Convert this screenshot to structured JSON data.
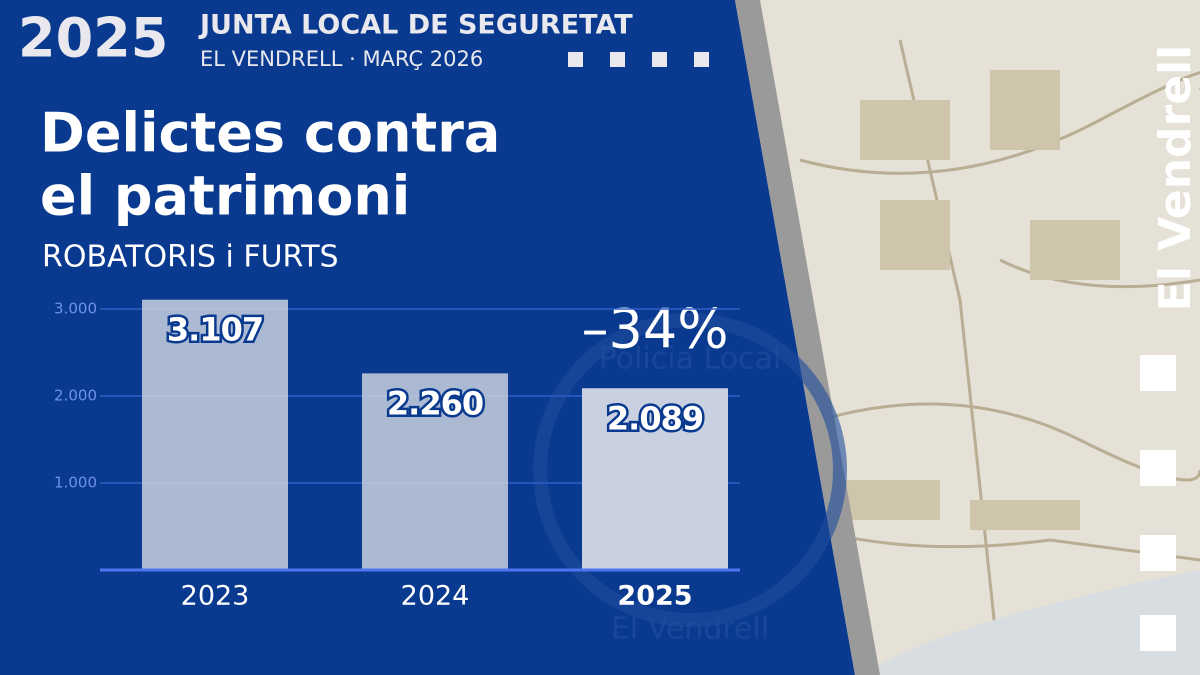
{
  "header": {
    "year": "2025",
    "title": "JUNTA LOCAL DE SEGURETAT",
    "subtitle": "EL VENDRELL · MARÇ 2026"
  },
  "side_text": "El Vendrell",
  "watermark": [
    "Policia Local",
    "El Vendrell"
  ],
  "chart_data": {
    "type": "bar",
    "title": [
      "Delictes contra",
      "el patrimoni"
    ],
    "subtitle": "ROBATORIS i FURTS",
    "annotation": "–34%",
    "categories": [
      "2023",
      "2024",
      "2025"
    ],
    "values": [
      3107,
      2260,
      2089
    ],
    "value_labels": [
      "3.107",
      "2.260",
      "2.089"
    ],
    "color": "#c9d0df",
    "highlight_index": 2,
    "ylim": [
      0,
      3200
    ],
    "yticks": [
      {
        "value": 1000,
        "label": "1.000"
      },
      {
        "value": 2000,
        "label": "2.000"
      },
      {
        "value": 3000,
        "label": "3.000"
      }
    ],
    "grid": true
  }
}
